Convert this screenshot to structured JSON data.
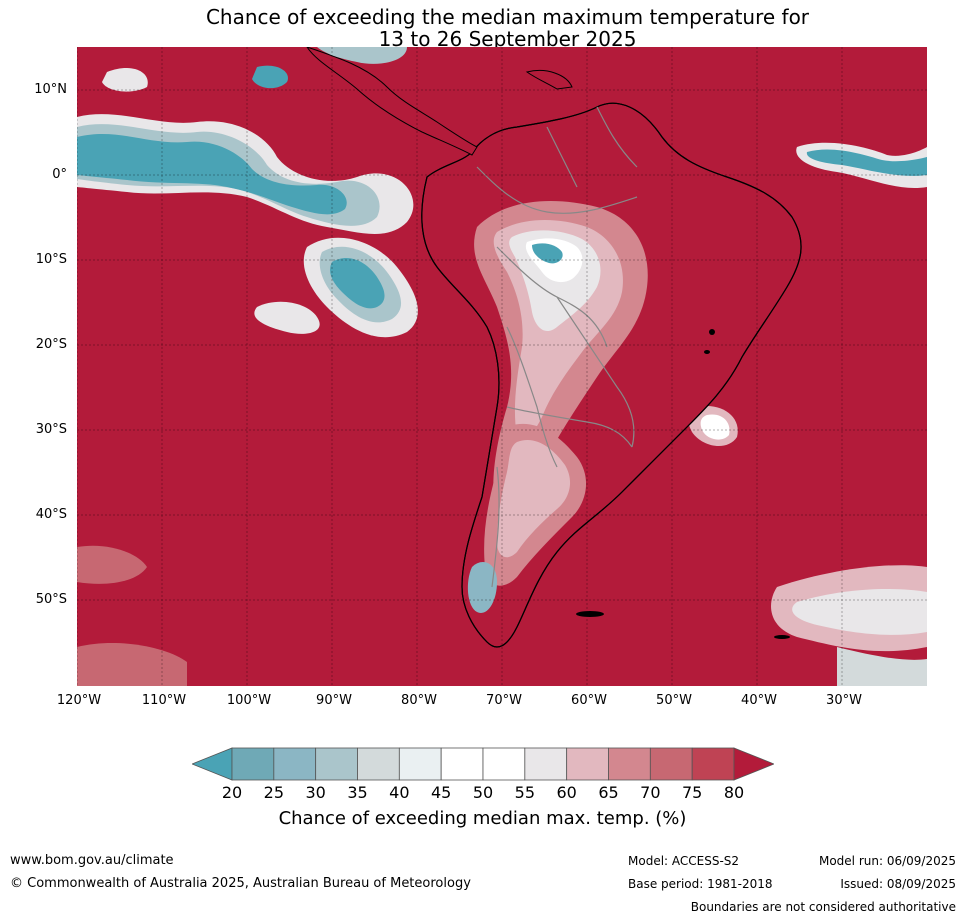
{
  "title": {
    "line1": "Chance of exceeding the median maximum temperature for",
    "line2": "13 to 26 September 2025"
  },
  "map": {
    "lat_labels": [
      "10°N",
      "0°",
      "10°S",
      "20°S",
      "30°S",
      "40°S",
      "50°S"
    ],
    "lon_labels": [
      "120°W",
      "110°W",
      "100°W",
      "90°W",
      "80°W",
      "70°W",
      "60°W",
      "50°W",
      "40°W",
      "30°W"
    ],
    "ocean_color": "#b31b3a",
    "land_outline_color": "#000000",
    "border_color": "#888888"
  },
  "colorbar": {
    "ticks": [
      "20",
      "25",
      "30",
      "35",
      "40",
      "45",
      "50",
      "55",
      "60",
      "65",
      "70",
      "75",
      "80"
    ],
    "colors": [
      "#4aa3b5",
      "#6fa9b6",
      "#8bb6c4",
      "#aac5cb",
      "#d3dadb",
      "#eaf0f2",
      "#ffffff",
      "#ffffff",
      "#e9e7e9",
      "#e2b8bf",
      "#d3878f",
      "#c76872",
      "#bf4354",
      "#b31b3a"
    ],
    "label": "Chance of exceeding median max. temp. (%)"
  },
  "footer": {
    "url": "www.bom.gov.au/climate",
    "copyright": "© Commonwealth of Australia 2025, Australian Bureau of Meteorology",
    "model": "Model: ACCESS-S2",
    "base_period": "Base period: 1981-2018",
    "model_run": "Model run: 06/09/2025",
    "issued": "Issued: 08/09/2025",
    "disclaimer": "Boundaries are not considered authoritative"
  }
}
